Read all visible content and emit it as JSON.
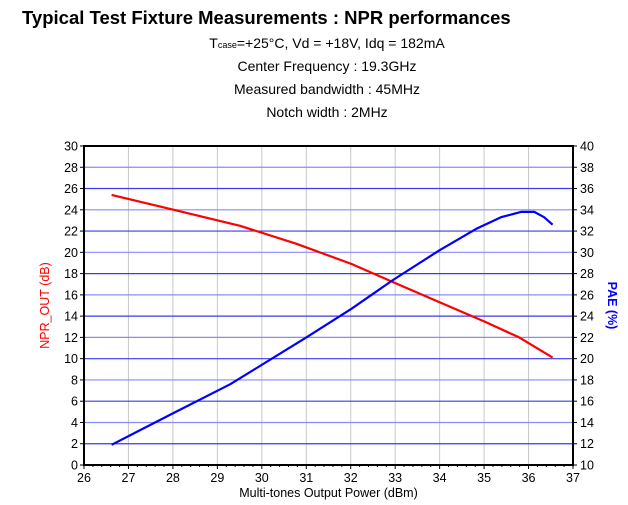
{
  "chart_data": {
    "type": "line",
    "title": "Typical Test Fixture Measurements : NPR performances",
    "subtitle_lines": {
      "conditions_prefix": "T",
      "conditions_sub": "case",
      "conditions_rest": "=+25°C, Vd = +18V, Idq = 182mA",
      "center_frequency": "Center Frequency : 19.3GHz",
      "bandwidth": "Measured bandwidth : 45MHz",
      "notch": "Notch width : 2MHz"
    },
    "xlabel": "Multi-tones Output Power (dBm)",
    "ylabel_left": "NPR_OUT (dB)",
    "ylabel_right": "PAE (%)",
    "xlim": [
      26,
      37
    ],
    "ylim_left": [
      0,
      30
    ],
    "ylim_right": [
      10,
      40
    ],
    "x_ticks": [
      "26",
      "27",
      "28",
      "29",
      "30",
      "31",
      "32",
      "33",
      "34",
      "35",
      "36",
      "37"
    ],
    "y_ticks_left": [
      "0",
      "2",
      "4",
      "6",
      "8",
      "10",
      "12",
      "14",
      "16",
      "18",
      "20",
      "22",
      "24",
      "26",
      "28",
      "30"
    ],
    "y_ticks_right": [
      "10",
      "12",
      "14",
      "16",
      "18",
      "20",
      "22",
      "24",
      "26",
      "28",
      "30",
      "32",
      "34",
      "36",
      "38",
      "40"
    ],
    "grid": true,
    "series": [
      {
        "axis": "left",
        "color": "#ff0000",
        "x": [
          26.62,
          28.02,
          29.51,
          30.78,
          32.02,
          32.95,
          34.0,
          35.0,
          35.79,
          36.54
        ],
        "y": [
          25.4,
          24.0,
          22.5,
          20.8,
          18.9,
          17.2,
          15.3,
          13.5,
          12.0,
          10.1
        ]
      },
      {
        "axis": "right",
        "color": "#0000ff",
        "x": [
          26.62,
          28.02,
          29.29,
          31.0,
          32.02,
          32.95,
          34.0,
          34.82,
          35.38,
          35.83,
          36.13,
          36.35,
          36.54
        ],
        "y": [
          11.9,
          14.9,
          17.6,
          22.0,
          24.7,
          27.4,
          30.2,
          32.2,
          33.3,
          33.8,
          33.8,
          33.3,
          32.6
        ]
      }
    ]
  }
}
